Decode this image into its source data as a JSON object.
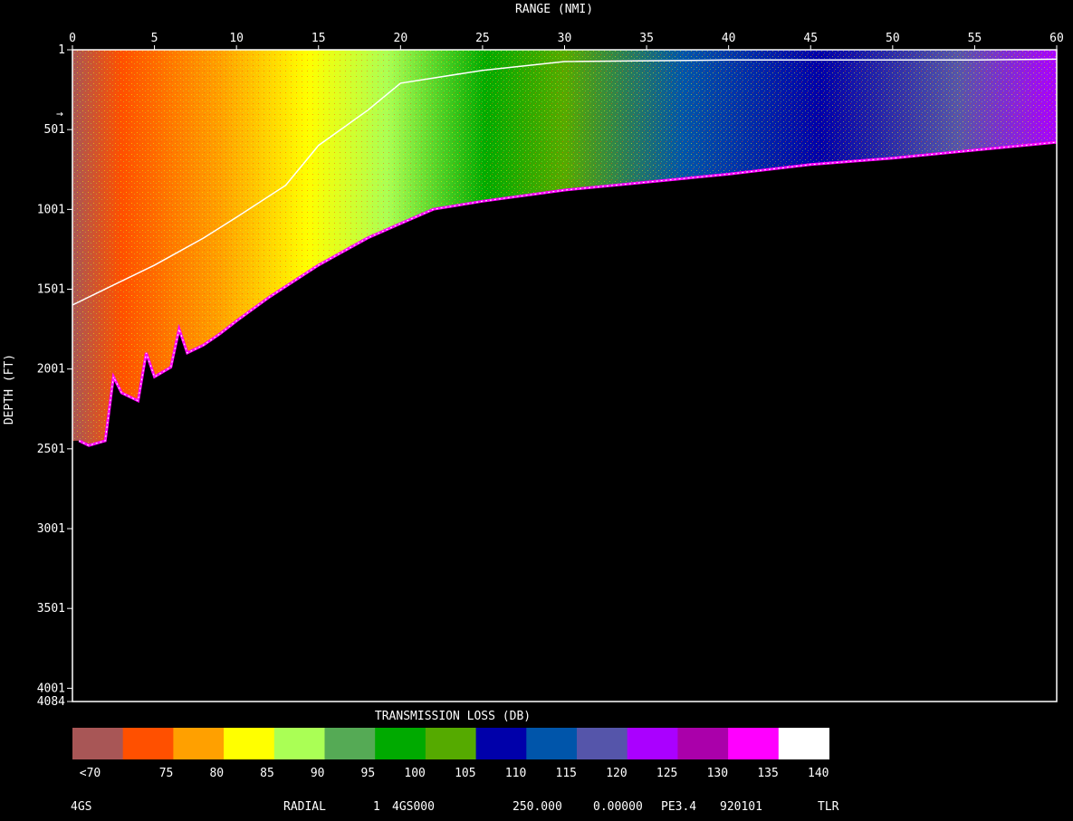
{
  "chart_data": {
    "type": "heatmap",
    "title": "RANGE (NMI)",
    "xlabel": "RANGE (NMI)",
    "ylabel": "DEPTH (FT)",
    "xlim": [
      0,
      60
    ],
    "ylim": [
      1,
      4084
    ],
    "y_inverted": true,
    "x_ticks": [
      "0",
      "5",
      "10",
      "15",
      "20",
      "25",
      "30",
      "35",
      "40",
      "45",
      "50",
      "55",
      "60"
    ],
    "y_ticks": [
      "1",
      "501",
      "1001",
      "1501",
      "2001",
      "2501",
      "3001",
      "3501",
      "4001",
      "4084"
    ],
    "source_depth_marker_ft": 400,
    "sound_speed_profile": [
      [
        0,
        1600
      ],
      [
        2,
        1500
      ],
      [
        5,
        1350
      ],
      [
        8,
        1180
      ],
      [
        10,
        1050
      ],
      [
        13,
        850
      ],
      [
        15,
        600
      ],
      [
        18,
        380
      ],
      [
        20,
        210
      ],
      [
        25,
        130
      ],
      [
        30,
        75
      ],
      [
        40,
        65
      ],
      [
        55,
        65
      ],
      [
        60,
        60
      ]
    ],
    "insonified_bottom_boundary": [
      [
        0.4,
        2450
      ],
      [
        1,
        2480
      ],
      [
        2,
        2450
      ],
      [
        2.5,
        2050
      ],
      [
        3,
        2150
      ],
      [
        4,
        2200
      ],
      [
        4.5,
        1900
      ],
      [
        5,
        2050
      ],
      [
        6,
        1990
      ],
      [
        6.5,
        1750
      ],
      [
        7,
        1900
      ],
      [
        8,
        1850
      ],
      [
        9,
        1780
      ],
      [
        10,
        1700
      ],
      [
        12,
        1550
      ],
      [
        15,
        1350
      ],
      [
        18,
        1180
      ],
      [
        20,
        1090
      ],
      [
        22,
        1000
      ],
      [
        25,
        950
      ],
      [
        30,
        880
      ],
      [
        35,
        830
      ],
      [
        40,
        780
      ],
      [
        45,
        720
      ],
      [
        50,
        680
      ],
      [
        55,
        630
      ],
      [
        60,
        580
      ]
    ],
    "colorbar": {
      "title": "TRANSMISSION LOSS (DB)",
      "labels": [
        "<70",
        "75",
        "80",
        "85",
        "90",
        "95",
        "100",
        "105",
        "110",
        "115",
        "120",
        "125",
        "130",
        "135",
        "140"
      ],
      "colors": [
        "#a85656",
        "#ff5000",
        "#ffa000",
        "#ffff00",
        "#aaff55",
        "#55aa55",
        "#00aa00",
        "#55aa00",
        "#0000aa",
        "#0055aa",
        "#5555aa",
        "#aa00ff",
        "#aa00aa",
        "#ff00ff",
        "#ffffff"
      ]
    }
  },
  "footer": {
    "item_1": "4GS",
    "item_2": "RADIAL",
    "item_3": "1",
    "item_4": "4GS000",
    "item_5": "250.000",
    "item_6": "0.00000",
    "item_7": "PE3.4",
    "item_8": "920101",
    "item_9": "TLR"
  }
}
